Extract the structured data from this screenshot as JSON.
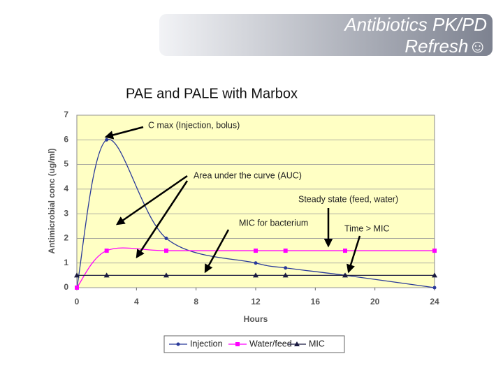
{
  "slide_title": [
    "Antibiotics PK/PD",
    "Refresh☺"
  ],
  "chart_data": {
    "type": "line",
    "title": "PAE and PALE with Marbox",
    "x_label": "Hours",
    "y_label": "Antimicrobial conc (ug/ml)",
    "x": [
      0,
      2,
      6,
      12,
      14,
      18,
      24
    ],
    "series": [
      {
        "name": "Injection",
        "color": "#2a3a9a",
        "marker": "circle",
        "values": [
          0,
          6,
          2,
          1,
          0.8,
          0.5,
          0
        ]
      },
      {
        "name": "Water/feed",
        "color": "#ff00ff",
        "marker": "square",
        "values": [
          0,
          1.5,
          1.5,
          1.5,
          1.5,
          1.5,
          1.5
        ]
      },
      {
        "name": "MIC",
        "color": "#1a1a40",
        "marker": "triangle",
        "values": [
          0.5,
          0.5,
          0.5,
          0.5,
          0.5,
          0.5,
          0.5
        ]
      }
    ],
    "xlim": [
      0,
      24
    ],
    "xticks": [
      0,
      4,
      8,
      12,
      16,
      20,
      24
    ],
    "ylim": [
      0,
      7
    ],
    "yticks": [
      0,
      1,
      2,
      3,
      4,
      5,
      6,
      7
    ],
    "grid": true,
    "annotations": [
      "C max (Injection, bolus)",
      "Area under the curve (AUC)",
      "Steady state (feed, water)",
      "MIC for bacterium",
      "Time > MIC"
    ]
  }
}
